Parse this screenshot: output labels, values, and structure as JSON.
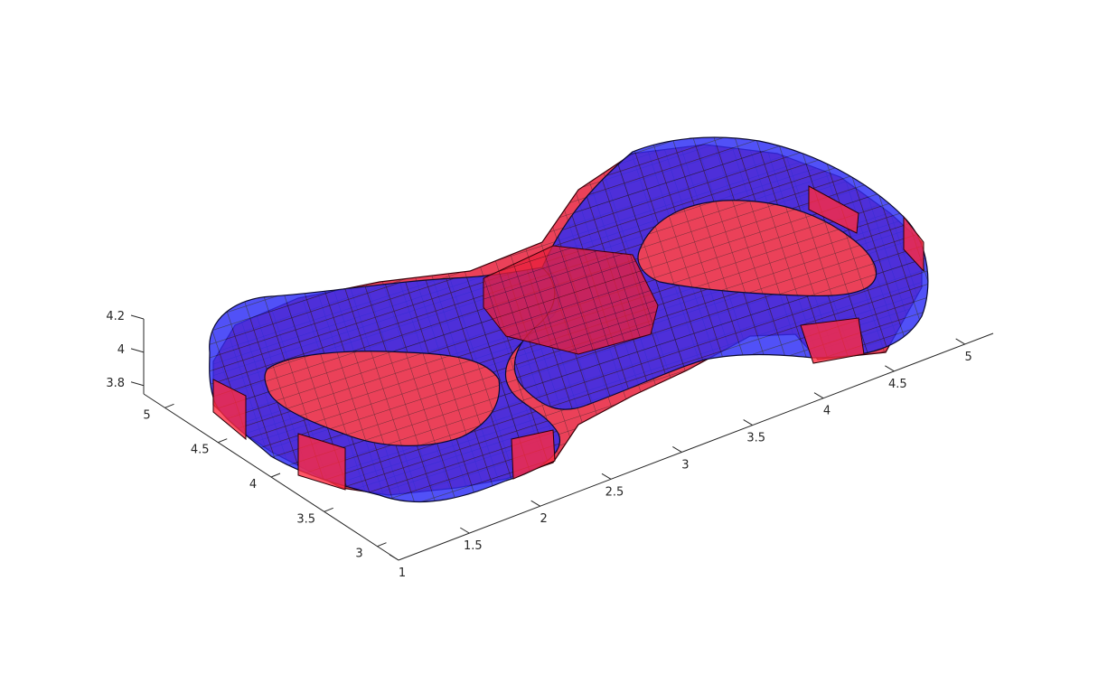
{
  "chart_data": {
    "type": "3d-surface",
    "title": "",
    "xlabel": "",
    "ylabel": "",
    "zlabel": "",
    "xlim": [
      1,
      5
    ],
    "ylim": [
      2.9,
      5.1
    ],
    "zlim": [
      3.75,
      4.2
    ],
    "x_ticks": [
      "1",
      "1.5",
      "2",
      "2.5",
      "3",
      "3.5",
      "4",
      "4.5",
      "5"
    ],
    "y_ticks": [
      "3",
      "3.5",
      "4",
      "4.5",
      "5"
    ],
    "z_ticks": [
      "3.8",
      "4",
      "4.2"
    ],
    "grid": false,
    "series": [
      {
        "shape": "figure-eight tube mesh (two loops joined at center)",
        "color": "#1f1fff",
        "opacity": 0.7,
        "loops": [
          {
            "center_x": 2,
            "center_y": 4
          },
          {
            "center_x": 4,
            "center_y": 4
          }
        ],
        "z_center": 4.0
      },
      {
        "shape": "box-segment inner core mesh",
        "color": "#ff1f3a",
        "opacity": 0.7,
        "z_center": 4.0
      }
    ]
  }
}
